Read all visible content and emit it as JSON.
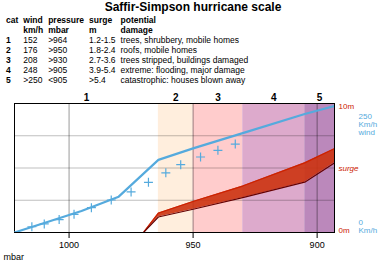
{
  "chart_data": {
    "type": "line",
    "title": "Saffir-Simpson hurricane scale",
    "table": {
      "columns": [
        "cat",
        "wind\nkm/h",
        "pressure\nmbar",
        "surge\nm",
        "potential\ndamage"
      ],
      "rows": [
        [
          "1",
          "152",
          ">964",
          "1.2-1.5",
          "trees, shrubbery, mobile homes"
        ],
        [
          "2",
          "176",
          ">950",
          "1.8-2.4",
          "roofs, mobile homes"
        ],
        [
          "3",
          "208",
          ">930",
          "2.7-3.6",
          "trees stripped, buildings damaged"
        ],
        [
          "4",
          "248",
          ">905",
          "3.9-5.4",
          "extreme: flooding, major damage"
        ],
        [
          "5",
          ">250",
          "<905",
          ">5.4",
          "catastrophic: houses blown away"
        ]
      ]
    },
    "xlabel": "mbar",
    "xlim": [
      1022,
      893
    ],
    "xticks": [
      1000,
      950,
      900
    ],
    "ylim": [
      0,
      270
    ],
    "yticks": [
      67.5,
      135,
      202.5
    ],
    "y2lim": [
      0,
      10
    ],
    "grid": true,
    "tick_labels": "x",
    "bands": [
      {
        "from": 1022,
        "to": 964,
        "color": "#ffffff",
        "label": "1"
      },
      {
        "from": 964,
        "to": 950,
        "color": "#ffeedd",
        "label": "2"
      },
      {
        "from": 950,
        "to": 930,
        "color": "#ffcccc",
        "label": "3"
      },
      {
        "from": 930,
        "to": 905,
        "color": "#ddaacc",
        "label": "4"
      },
      {
        "from": 905,
        "to": 893,
        "color": "#bb88bb",
        "label": "5"
      }
    ],
    "series": [
      {
        "type": "area",
        "color": "#cc3311",
        "axis": "y2",
        "x": [
          1022,
          985,
          970,
          964,
          950,
          930,
          905,
          893
        ],
        "lower": [
          0,
          0,
          0,
          1.2,
          1.8,
          2.7,
          3.9,
          5.4
        ],
        "upper": [
          0,
          0,
          0,
          1.5,
          2.4,
          3.6,
          5.4,
          6.5
        ]
      },
      {
        "type": "line",
        "color": "#cc2200",
        "axis": "y2",
        "x": [
          1022,
          985,
          970,
          964,
          950,
          930,
          905,
          893
        ],
        "values": [
          0,
          0,
          0,
          1.5,
          2.4,
          3.6,
          5.4,
          6.5
        ]
      },
      {
        "type": "line",
        "color": "#660000",
        "axis": "y2",
        "x": [
          1022,
          985,
          970,
          964,
          950,
          930,
          905,
          893
        ],
        "values": [
          0,
          0,
          0,
          1.2,
          1.8,
          2.7,
          3.9,
          5.4
        ]
      },
      {
        "type": "line",
        "color": "#55aadd",
        "x": [
          1022,
          1010,
          995,
          980,
          964,
          950,
          930,
          905,
          893
        ],
        "values": [
          0,
          20,
          45,
          75,
          152,
          176,
          208,
          248,
          265
        ]
      },
      {
        "type": "scatter",
        "marker": "+",
        "color": "#55aadd",
        "x": [
          1015,
          1010,
          1004,
          998,
          991,
          983,
          975,
          968,
          961,
          955,
          947,
          940,
          933
        ],
        "values": [
          12,
          18,
          27,
          38,
          52,
          68,
          85,
          105,
          125,
          142,
          158,
          172,
          185
        ]
      }
    ],
    "annotations": [
      {
        "text": "10m",
        "axis": "y2",
        "y2": 10,
        "color": "#cc2200"
      },
      {
        "text": "surge",
        "axis": "y2",
        "color": "#cc2200"
      },
      {
        "text": "0m",
        "axis": "y2",
        "y2": 0,
        "color": "#cc2200"
      },
      {
        "text": "250\nKm/h\nwind",
        "y": 250,
        "color": "#55aadd"
      },
      {
        "text": "0\nKm/h",
        "y": 0,
        "color": "#55aadd"
      }
    ]
  }
}
